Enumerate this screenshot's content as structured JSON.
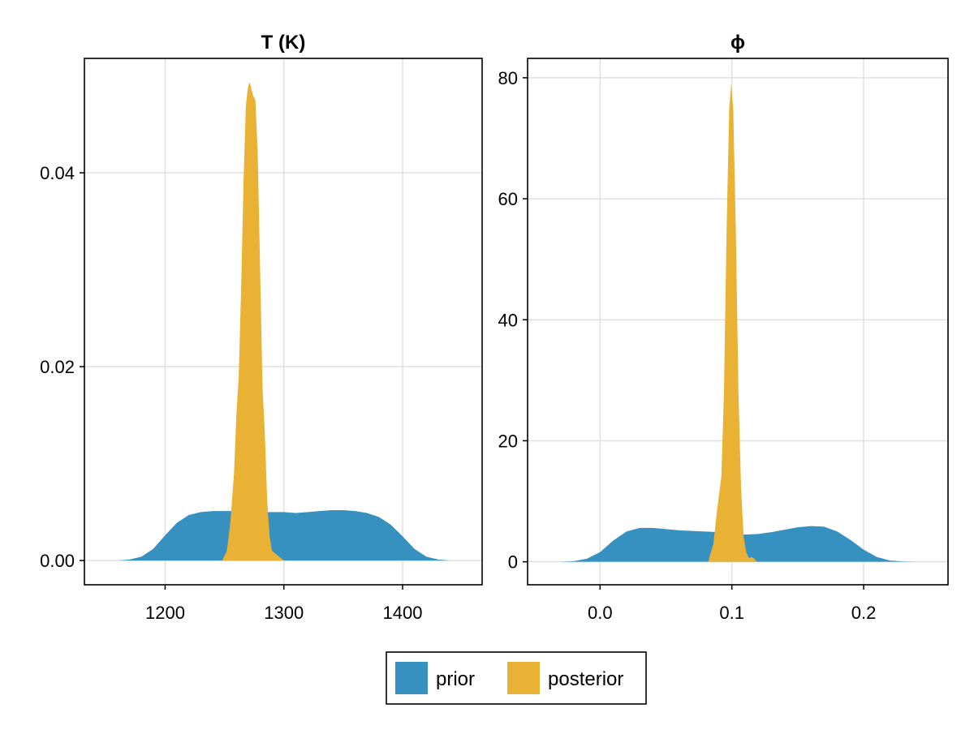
{
  "legend": {
    "placement": "bottom-center",
    "items": [
      {
        "label": "prior",
        "color": "#3690c0"
      },
      {
        "label": "posterior",
        "color": "#e9b234"
      }
    ]
  },
  "chart_data": [
    {
      "type": "area",
      "title": "T (K)",
      "xlabel": "",
      "ylabel": "",
      "xlim": [
        1132,
        1467
      ],
      "ylim": [
        -0.0025,
        0.0518
      ],
      "xticks": [
        1200,
        1300,
        1400
      ],
      "xtick_labels": [
        "1200",
        "1300",
        "1400"
      ],
      "yticks": [
        0.0,
        0.02,
        0.04
      ],
      "ytick_labels": [
        "0.00",
        "0.02",
        "0.04"
      ],
      "grid": true,
      "series": [
        {
          "name": "prior",
          "color": "#3690c0",
          "x": [
            1160,
            1170,
            1180,
            1190,
            1200,
            1210,
            1220,
            1230,
            1240,
            1250,
            1260,
            1270,
            1280,
            1290,
            1300,
            1310,
            1320,
            1330,
            1340,
            1350,
            1360,
            1370,
            1380,
            1390,
            1400,
            1410,
            1420,
            1430,
            1440
          ],
          "y": [
            0.0,
            0.0001,
            0.0004,
            0.0012,
            0.0026,
            0.0039,
            0.0047,
            0.005,
            0.0051,
            0.0051,
            0.0051,
            0.005,
            0.005,
            0.005,
            0.005,
            0.0049,
            0.005,
            0.0051,
            0.0052,
            0.0052,
            0.0051,
            0.0049,
            0.0045,
            0.0037,
            0.0025,
            0.0012,
            0.0004,
            0.0001,
            0.0
          ]
        },
        {
          "name": "posterior",
          "color": "#e9b234",
          "x": [
            1248,
            1252,
            1255,
            1258,
            1260,
            1262,
            1264,
            1266,
            1268,
            1270,
            1271,
            1272,
            1274,
            1276,
            1278,
            1280,
            1282,
            1284,
            1286,
            1288,
            1290,
            1292,
            1294,
            1296,
            1298,
            1300
          ],
          "y": [
            0.0,
            0.001,
            0.004,
            0.009,
            0.015,
            0.019,
            0.028,
            0.039,
            0.047,
            0.049,
            0.0493,
            0.049,
            0.048,
            0.0475,
            0.042,
            0.03,
            0.018,
            0.013,
            0.006,
            0.0025,
            0.001,
            0.0008,
            0.0006,
            0.0004,
            0.0002,
            0.0
          ]
        }
      ]
    },
    {
      "type": "area",
      "title": "ϕ",
      "xlabel": "",
      "ylabel": "",
      "xlim": [
        -0.055,
        0.264
      ],
      "ylim": [
        -3.8,
        83.2
      ],
      "xticks": [
        0.0,
        0.1,
        0.2
      ],
      "xtick_labels": [
        "0.0",
        "0.1",
        "0.2"
      ],
      "yticks": [
        0,
        20,
        40,
        60,
        80
      ],
      "ytick_labels": [
        "0",
        "20",
        "40",
        "60",
        "80"
      ],
      "grid": true,
      "series": [
        {
          "name": "prior",
          "color": "#3690c0",
          "x": [
            -0.03,
            -0.02,
            -0.01,
            0.0,
            0.01,
            0.02,
            0.03,
            0.04,
            0.05,
            0.06,
            0.07,
            0.08,
            0.09,
            0.1,
            0.11,
            0.12,
            0.13,
            0.14,
            0.15,
            0.16,
            0.17,
            0.18,
            0.19,
            0.2,
            0.21,
            0.22,
            0.23,
            0.24
          ],
          "y": [
            0.0,
            0.1,
            0.5,
            1.6,
            3.5,
            5.0,
            5.6,
            5.6,
            5.4,
            5.2,
            5.1,
            5.0,
            4.9,
            4.7,
            4.5,
            4.6,
            4.9,
            5.3,
            5.7,
            5.9,
            5.8,
            5.0,
            3.6,
            2.0,
            0.8,
            0.2,
            0.05,
            0.0
          ]
        },
        {
          "name": "posterior",
          "color": "#e9b234",
          "x": [
            0.082,
            0.086,
            0.089,
            0.092,
            0.094,
            0.096,
            0.098,
            0.0995,
            0.101,
            0.103,
            0.105,
            0.107,
            0.109,
            0.111,
            0.113,
            0.115,
            0.117,
            0.119
          ],
          "y": [
            0.0,
            3.0,
            9.0,
            14.0,
            28.0,
            55.0,
            75.0,
            79.0,
            75.0,
            55.0,
            28.0,
            12.0,
            4.0,
            1.5,
            0.6,
            0.8,
            0.5,
            0.0
          ]
        }
      ]
    }
  ]
}
